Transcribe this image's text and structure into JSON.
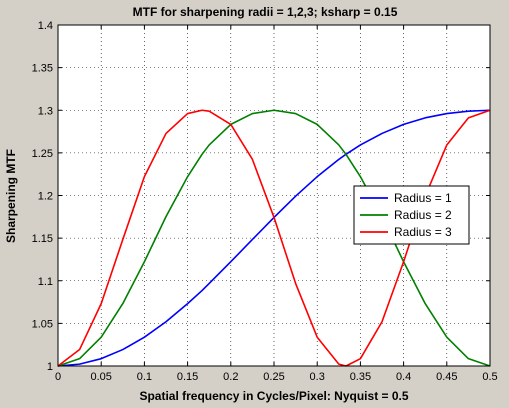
{
  "chart_data": {
    "type": "line",
    "title": "MTF for sharpening radii = 1,2,3; ksharp = 0.15",
    "xlabel": "Spatial frequency in Cycles/Pixel:  Nyquist = 0.5",
    "ylabel": "Sharpening MTF",
    "xlim": [
      0,
      0.5
    ],
    "ylim": [
      1,
      1.4
    ],
    "xticks": [
      0,
      0.05,
      0.1,
      0.15,
      0.2,
      0.25,
      0.3,
      0.35,
      0.4,
      0.45,
      0.5
    ],
    "xtick_labels": [
      "0",
      "0.05",
      "0.1",
      "0.15",
      "0.2",
      "0.25",
      "0.3",
      "0.35",
      "0.4",
      "0.45",
      "0.5"
    ],
    "yticks": [
      1,
      1.05,
      1.1,
      1.15,
      1.2,
      1.25,
      1.3,
      1.35,
      1.4
    ],
    "ytick_labels": [
      "1",
      "1.05",
      "1.1",
      "1.15",
      "1.2",
      "1.25",
      "1.3",
      "1.35",
      "1.4"
    ],
    "grid": true,
    "legend_position": "right",
    "x": [
      0,
      0.025,
      0.05,
      0.075,
      0.1,
      0.125,
      0.15,
      0.1667,
      0.175,
      0.2,
      0.225,
      0.25,
      0.275,
      0.3,
      0.325,
      0.3333,
      0.35,
      0.375,
      0.4,
      0.425,
      0.45,
      0.475,
      0.5
    ],
    "series": [
      {
        "name": "Radius = 1",
        "color": "#0000ff",
        "values": [
          1.0,
          1.0022,
          1.0086,
          1.0193,
          1.0338,
          1.0519,
          1.0732,
          1.0885,
          1.0969,
          1.1223,
          1.1484,
          1.1743,
          1.1992,
          1.2221,
          1.2424,
          1.2483,
          1.2593,
          1.2728,
          1.2834,
          1.2911,
          1.2961,
          1.2989,
          1.3
        ]
      },
      {
        "name": "Radius = 2",
        "color": "#008000",
        "values": [
          1.0,
          1.0086,
          1.0338,
          1.0732,
          1.1223,
          1.1752,
          1.2221,
          1.2483,
          1.2593,
          1.2834,
          1.2961,
          1.3,
          1.2961,
          1.2834,
          1.2593,
          1.2483,
          1.2221,
          1.1752,
          1.1223,
          1.0732,
          1.0338,
          1.0086,
          1.0
        ]
      },
      {
        "name": "Radius = 3",
        "color": "#ff0000",
        "values": [
          1.0,
          1.0193,
          1.0732,
          1.1484,
          1.2221,
          1.2728,
          1.2961,
          1.3,
          1.2989,
          1.2834,
          1.2424,
          1.1743,
          1.0969,
          1.0338,
          1.0022,
          1.0,
          1.0086,
          1.0519,
          1.1223,
          1.1992,
          1.2593,
          1.2911,
          1.3
        ]
      }
    ]
  }
}
